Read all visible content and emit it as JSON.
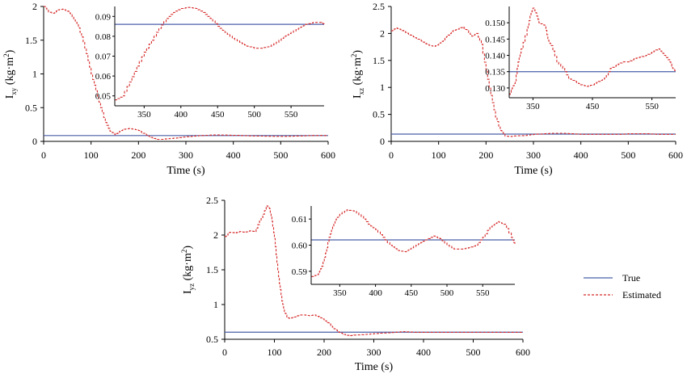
{
  "legend": {
    "true_label": "True",
    "estimated_label": "Estimated",
    "true_color": "#4a5fa8",
    "estimated_color": "#d62a2a"
  },
  "chart_data": [
    {
      "type": "line",
      "id": "ixy",
      "ylabel_main": "I",
      "ylabel_sub": "xy",
      "ylabel_unit": "(kg·m",
      "ylabel_sup": "2",
      "ylabel_close": ")",
      "xlabel": "Time (s)",
      "xlim": [
        0,
        600
      ],
      "ylim": [
        0,
        2
      ],
      "xticks": [
        "0",
        "100",
        "200",
        "300",
        "400",
        "500",
        "600"
      ],
      "yticks": [
        "0",
        "0.5",
        "1",
        "1.5",
        "2"
      ],
      "true_value": 0.086,
      "series": [
        {
          "name": "Estimated",
          "x": [
            0,
            10,
            20,
            30,
            40,
            50,
            60,
            70,
            80,
            90,
            100,
            110,
            120,
            130,
            140,
            150,
            160,
            170,
            180,
            190,
            200,
            210,
            220,
            230,
            240,
            250,
            260,
            280,
            300,
            320,
            340,
            360,
            380,
            400,
            420,
            440,
            460,
            480,
            500,
            520,
            540,
            560,
            580,
            600
          ],
          "y": [
            2.0,
            1.92,
            1.9,
            1.95,
            1.96,
            1.93,
            1.85,
            1.75,
            1.55,
            1.3,
            1.0,
            0.75,
            0.5,
            0.28,
            0.15,
            0.1,
            0.15,
            0.18,
            0.19,
            0.18,
            0.16,
            0.12,
            0.08,
            0.05,
            0.03,
            0.03,
            0.04,
            0.05,
            0.07,
            0.08,
            0.09,
            0.095,
            0.093,
            0.09,
            0.085,
            0.08,
            0.078,
            0.075,
            0.074,
            0.076,
            0.08,
            0.085,
            0.087,
            0.086
          ]
        }
      ],
      "inset": {
        "xlim": [
          310,
          595
        ],
        "ylim": [
          0.045,
          0.095
        ],
        "xticks": [
          "350",
          "400",
          "450",
          "500",
          "550"
        ],
        "yticks": [
          "0.05",
          "0.06",
          "0.07",
          "0.08",
          "0.09"
        ],
        "x": [
          310,
          320,
          330,
          340,
          350,
          360,
          370,
          380,
          390,
          400,
          410,
          420,
          430,
          440,
          450,
          460,
          470,
          480,
          490,
          500,
          510,
          520,
          530,
          540,
          550,
          560,
          570,
          580,
          590,
          595
        ],
        "y": [
          0.048,
          0.05,
          0.057,
          0.065,
          0.072,
          0.078,
          0.084,
          0.089,
          0.092,
          0.094,
          0.0945,
          0.094,
          0.092,
          0.089,
          0.085,
          0.082,
          0.079,
          0.077,
          0.075,
          0.074,
          0.074,
          0.075,
          0.077,
          0.08,
          0.082,
          0.084,
          0.086,
          0.087,
          0.087,
          0.086
        ]
      }
    },
    {
      "type": "line",
      "id": "ixz",
      "ylabel_main": "I",
      "ylabel_sub": "xz",
      "ylabel_unit": "(kg·m",
      "ylabel_sup": "2",
      "ylabel_close": ")",
      "xlabel": "Time (s)",
      "xlim": [
        0,
        600
      ],
      "ylim": [
        0,
        2.5
      ],
      "xticks": [
        "0",
        "100",
        "200",
        "300",
        "400",
        "500",
        "600"
      ],
      "yticks": [
        "0",
        "0.5",
        "1",
        "1.5",
        "2",
        "2.5"
      ],
      "true_value": 0.135,
      "series": [
        {
          "name": "Estimated",
          "x": [
            0,
            10,
            20,
            30,
            40,
            50,
            60,
            70,
            80,
            90,
            100,
            110,
            120,
            130,
            140,
            150,
            160,
            170,
            180,
            190,
            200,
            210,
            220,
            230,
            240,
            250,
            260,
            280,
            300,
            320,
            340,
            360,
            380,
            400,
            420,
            440,
            460,
            480,
            500,
            520,
            540,
            560,
            580,
            600
          ],
          "y": [
            2.05,
            2.1,
            2.07,
            2.02,
            1.97,
            1.92,
            1.88,
            1.82,
            1.78,
            1.76,
            1.8,
            1.88,
            1.97,
            2.05,
            2.08,
            2.12,
            2.05,
            1.95,
            2.0,
            1.8,
            1.3,
            0.85,
            0.45,
            0.2,
            0.1,
            0.09,
            0.1,
            0.11,
            0.13,
            0.14,
            0.15,
            0.15,
            0.14,
            0.13,
            0.13,
            0.13,
            0.13,
            0.13,
            0.14,
            0.14,
            0.14,
            0.13,
            0.13,
            0.13
          ]
        }
      ],
      "inset": {
        "xlim": [
          310,
          590
        ],
        "ylim": [
          0.127,
          0.155
        ],
        "xticks": [
          "350",
          "450",
          "550"
        ],
        "yticks": [
          "0.130",
          "0.135",
          "0.140",
          "0.145",
          "0.150"
        ],
        "x": [
          310,
          315,
          320,
          325,
          330,
          340,
          345,
          350,
          355,
          360,
          370,
          375,
          380,
          390,
          400,
          410,
          420,
          430,
          440,
          450,
          460,
          470,
          480,
          490,
          500,
          510,
          520,
          530,
          540,
          550,
          560,
          570,
          580,
          585,
          590
        ],
        "y": [
          0.128,
          0.13,
          0.132,
          0.138,
          0.142,
          0.148,
          0.152,
          0.1545,
          0.153,
          0.15,
          0.149,
          0.145,
          0.143,
          0.138,
          0.136,
          0.133,
          0.132,
          0.131,
          0.1305,
          0.131,
          0.132,
          0.133,
          0.136,
          0.137,
          0.138,
          0.138,
          0.139,
          0.1395,
          0.14,
          0.141,
          0.142,
          0.14,
          0.138,
          0.136,
          0.135
        ]
      }
    },
    {
      "type": "line",
      "id": "iyz",
      "ylabel_main": "I",
      "ylabel_sub": "yz",
      "ylabel_unit": "(kg·m",
      "ylabel_sup": "2",
      "ylabel_close": ")",
      "xlabel": "Time (s)",
      "xlim": [
        0,
        600
      ],
      "ylim": [
        0.5,
        2.5
      ],
      "xticks": [
        "0",
        "100",
        "200",
        "300",
        "400",
        "500",
        "600"
      ],
      "yticks": [
        "0.5",
        "1",
        "1.5",
        "2",
        "2.5"
      ],
      "true_value": 0.602,
      "series": [
        {
          "name": "Estimated",
          "x": [
            0,
            10,
            20,
            30,
            40,
            50,
            60,
            70,
            80,
            85,
            90,
            95,
            100,
            105,
            110,
            115,
            120,
            125,
            130,
            140,
            150,
            160,
            170,
            180,
            190,
            200,
            210,
            220,
            230,
            240,
            250,
            260,
            280,
            300,
            320,
            340,
            360,
            380,
            400,
            420,
            440,
            460,
            480,
            500,
            520,
            540,
            560,
            580,
            600
          ],
          "y": [
            1.98,
            2.04,
            2.03,
            2.05,
            2.04,
            2.06,
            2.05,
            2.2,
            2.35,
            2.42,
            2.38,
            2.2,
            1.95,
            1.6,
            1.3,
            1.05,
            0.9,
            0.82,
            0.8,
            0.82,
            0.85,
            0.85,
            0.84,
            0.85,
            0.82,
            0.78,
            0.72,
            0.65,
            0.6,
            0.57,
            0.55,
            0.56,
            0.57,
            0.58,
            0.59,
            0.6,
            0.61,
            0.6,
            0.6,
            0.6,
            0.6,
            0.6,
            0.6,
            0.6,
            0.6,
            0.6,
            0.6,
            0.6,
            0.6
          ]
        }
      ],
      "inset": {
        "xlim": [
          310,
          595
        ],
        "ylim": [
          0.585,
          0.615
        ],
        "xticks": [
          "350",
          "400",
          "450",
          "500",
          "550"
        ],
        "yticks": [
          "0.59",
          "0.60",
          "0.61"
        ],
        "x": [
          310,
          320,
          325,
          330,
          335,
          340,
          345,
          350,
          360,
          370,
          380,
          390,
          400,
          410,
          420,
          430,
          440,
          450,
          460,
          470,
          480,
          490,
          500,
          510,
          520,
          530,
          540,
          550,
          560,
          570,
          580,
          590,
          595
        ],
        "y": [
          0.588,
          0.589,
          0.592,
          0.597,
          0.603,
          0.607,
          0.61,
          0.612,
          0.6135,
          0.613,
          0.611,
          0.608,
          0.606,
          0.603,
          0.6,
          0.598,
          0.5975,
          0.599,
          0.6005,
          0.602,
          0.6035,
          0.6025,
          0.6,
          0.5985,
          0.5985,
          0.599,
          0.6,
          0.603,
          0.607,
          0.609,
          0.608,
          0.603,
          0.6
        ]
      }
    }
  ]
}
